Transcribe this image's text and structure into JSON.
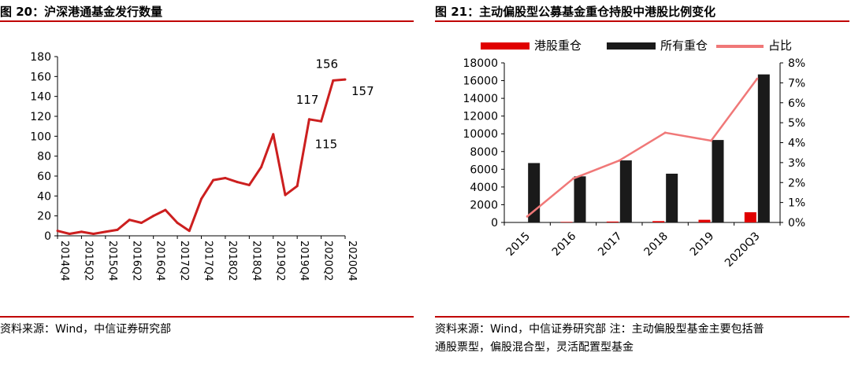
{
  "left": {
    "title": "图 20：沪深港通基金发行数量",
    "source": "资料来源：Wind，中信证券研究部"
  },
  "right": {
    "title": "图 21：主动偏股型公募基金重仓持股中港股比例变化",
    "source_line1": "资料来源：Wind，中信证券研究部 注：主动偏股型基金主要包括普",
    "source_line2": "通股票型，偏股混合型，灵活配置型基金"
  },
  "colors": {
    "rule": "#c00000",
    "line": "#cc1f1f",
    "hk_bar": "#e00000",
    "all_bar": "#1a1a1a",
    "ratio": "#f07878"
  },
  "chart_data": [
    {
      "type": "line",
      "title": "",
      "x_ticks": [
        "2014Q4",
        "2015Q2",
        "2015Q4",
        "2016Q2",
        "2016Q4",
        "2017Q2",
        "2017Q4",
        "2018Q2",
        "2018Q4",
        "2019Q2",
        "2019Q4",
        "2020Q2",
        "2020Q4"
      ],
      "x": [
        "2014Q4",
        "2015Q1",
        "2015Q2",
        "2015Q3",
        "2015Q4",
        "2016Q1",
        "2016Q2",
        "2016Q3",
        "2016Q4",
        "2017Q1",
        "2017Q2",
        "2017Q3",
        "2017Q4",
        "2018Q1",
        "2018Q2",
        "2018Q3",
        "2018Q4",
        "2019Q1",
        "2019Q2",
        "2019Q3",
        "2019Q4",
        "2020Q1",
        "2020Q2",
        "2020Q3",
        "2020Q4"
      ],
      "values": [
        5,
        2,
        4,
        2,
        4,
        6,
        16,
        13,
        20,
        26,
        13,
        5,
        37,
        56,
        58,
        54,
        51,
        69,
        102,
        41,
        50,
        117,
        115,
        156,
        157
      ],
      "annotations": [
        {
          "x": "2020Q1",
          "text": "117"
        },
        {
          "x": "2020Q2",
          "text": "115"
        },
        {
          "x": "2020Q3",
          "text": "156"
        },
        {
          "x": "2020Q4",
          "text": "157"
        }
      ],
      "ylim": [
        0,
        180
      ],
      "yticks": [
        0,
        20,
        40,
        60,
        80,
        100,
        120,
        140,
        160,
        180
      ],
      "grid": false,
      "xlabel": "",
      "ylabel": ""
    },
    {
      "type": "bar",
      "title": "",
      "categories": [
        "2015",
        "2016",
        "2017",
        "2018",
        "2019",
        "2020Q3"
      ],
      "series": [
        {
          "name": "港股重仓",
          "kind": "bar",
          "axis": "left",
          "values": [
            0,
            60,
            100,
            150,
            300,
            1150
          ]
        },
        {
          "name": "所有重仓",
          "kind": "bar",
          "axis": "left",
          "values": [
            6700,
            5200,
            7000,
            5500,
            9300,
            16700
          ]
        },
        {
          "name": "占比",
          "kind": "line",
          "axis": "right",
          "values": [
            0.3,
            2.2,
            3.1,
            4.5,
            4.1,
            7.2
          ]
        }
      ],
      "ylim_left": [
        0,
        18000
      ],
      "yticks_left": [
        0,
        2000,
        4000,
        6000,
        8000,
        10000,
        12000,
        14000,
        16000,
        18000
      ],
      "ylim_right": [
        0,
        8
      ],
      "yticks_right": [
        "0%",
        "1%",
        "2%",
        "3%",
        "4%",
        "5%",
        "6%",
        "7%",
        "8%"
      ],
      "legend": "top",
      "grid": false
    }
  ]
}
